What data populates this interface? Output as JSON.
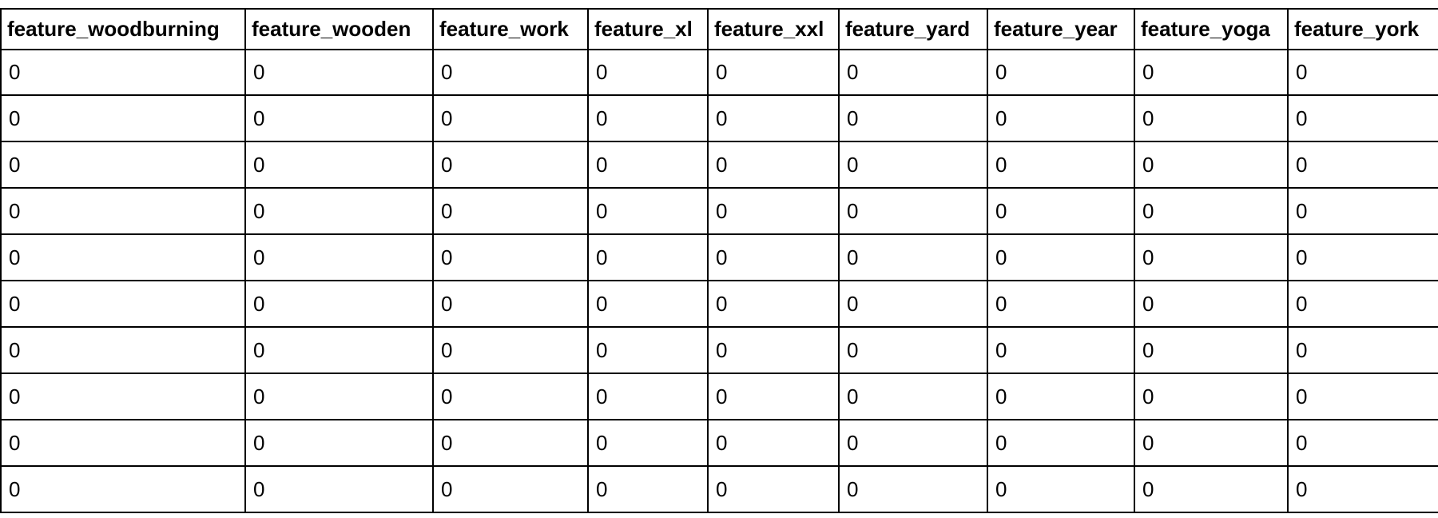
{
  "table": {
    "columns": [
      "feature_woodburning",
      "feature_wooden",
      "feature_work",
      "feature_xl",
      "feature_xxl",
      "feature_yard",
      "feature_year",
      "feature_yoga",
      "feature_york"
    ],
    "rows": [
      [
        "0",
        "0",
        "0",
        "0",
        "0",
        "0",
        "0",
        "0",
        "0"
      ],
      [
        "0",
        "0",
        "0",
        "0",
        "0",
        "0",
        "0",
        "0",
        "0"
      ],
      [
        "0",
        "0",
        "0",
        "0",
        "0",
        "0",
        "0",
        "0",
        "0"
      ],
      [
        "0",
        "0",
        "0",
        "0",
        "0",
        "0",
        "0",
        "0",
        "0"
      ],
      [
        "0",
        "0",
        "0",
        "0",
        "0",
        "0",
        "0",
        "0",
        "0"
      ],
      [
        "0",
        "0",
        "0",
        "0",
        "0",
        "0",
        "0",
        "0",
        "0"
      ],
      [
        "0",
        "0",
        "0",
        "0",
        "0",
        "0",
        "0",
        "0",
        "0"
      ],
      [
        "0",
        "0",
        "0",
        "0",
        "0",
        "0",
        "0",
        "0",
        "0"
      ],
      [
        "0",
        "0",
        "0",
        "0",
        "0",
        "0",
        "0",
        "0",
        "0"
      ],
      [
        "0",
        "0",
        "0",
        "0",
        "0",
        "0",
        "0",
        "0",
        "0"
      ]
    ]
  }
}
